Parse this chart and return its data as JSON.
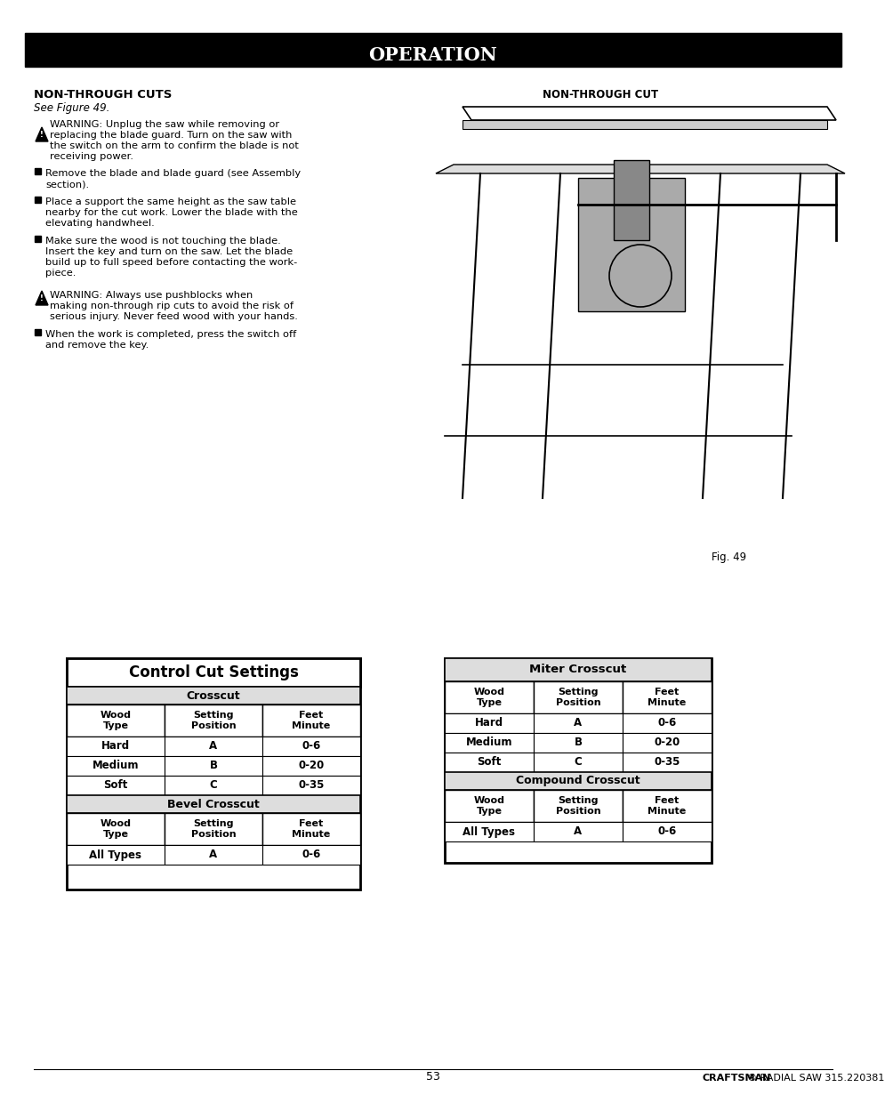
{
  "bg_color": "#ffffff",
  "header_bg": "#000000",
  "header_text": "OPERATION",
  "header_text_color": "#ffffff",
  "section_title_left": "NON-THROUGH CUTS",
  "section_subtitle_left": "See Figure 49.",
  "warning1_text": "WARNING: Unplug the saw while removing or replacing the blade guard. Turn on the saw with the switch on the arm to confirm the blade is not receiving power.",
  "bullets_left": [
    "Remove the blade and blade guard (see Assembly section).",
    "Place a support the same height as the saw table nearby for the cut work. Lower the blade with the elevating handwheel.",
    "Make sure the wood is not touching the blade. Insert the key and turn on the saw. Let the blade build up to full speed before contacting the workpiece."
  ],
  "warning2_text": "WARNING: Always use pushblocks when making non-through rip cuts to avoid the risk of serious injury. Never feed wood with your hands.",
  "bullet_last": "When the work is completed, press the switch off and remove the key.",
  "fig_label": "Fig. 49",
  "non_through_cut_label": "NON-THROUGH CUT",
  "footer_page": "53",
  "footer_brand": "CRAFTSMAN",
  "footer_suffix": "® RADIAL SAW 315.220381",
  "table1_title": "Control Cut Settings",
  "table1_sections": [
    {
      "header": "Crosscut",
      "col_headers": [
        "Wood\nType",
        "Setting\nPosition",
        "Feet\nMinute"
      ],
      "rows": [
        [
          "Hard",
          "A",
          "0-6"
        ],
        [
          "Medium",
          "B",
          "0-20"
        ],
        [
          "Soft",
          "C",
          "0-35"
        ]
      ]
    },
    {
      "header": "Bevel Crosscut",
      "col_headers": [
        "Wood\nType",
        "Setting\nPosition",
        "Feet\nMinute"
      ],
      "rows": [
        [
          "All Types",
          "A",
          "0-6"
        ]
      ]
    }
  ],
  "table2_sections": [
    {
      "header": "Miter Crosscut",
      "col_headers": [
        "Wood\nType",
        "Setting\nPosition",
        "Feet\nMinute"
      ],
      "rows": [
        [
          "Hard",
          "A",
          "0-6"
        ],
        [
          "Medium",
          "B",
          "0-20"
        ],
        [
          "Soft",
          "C",
          "0-35"
        ]
      ]
    },
    {
      "header": "Compound Crosscut",
      "col_headers": [
        "Wood\nType",
        "Setting\nPosition",
        "Feet\nMinute"
      ],
      "rows": [
        [
          "All Types",
          "A",
          "0-6"
        ]
      ]
    }
  ]
}
